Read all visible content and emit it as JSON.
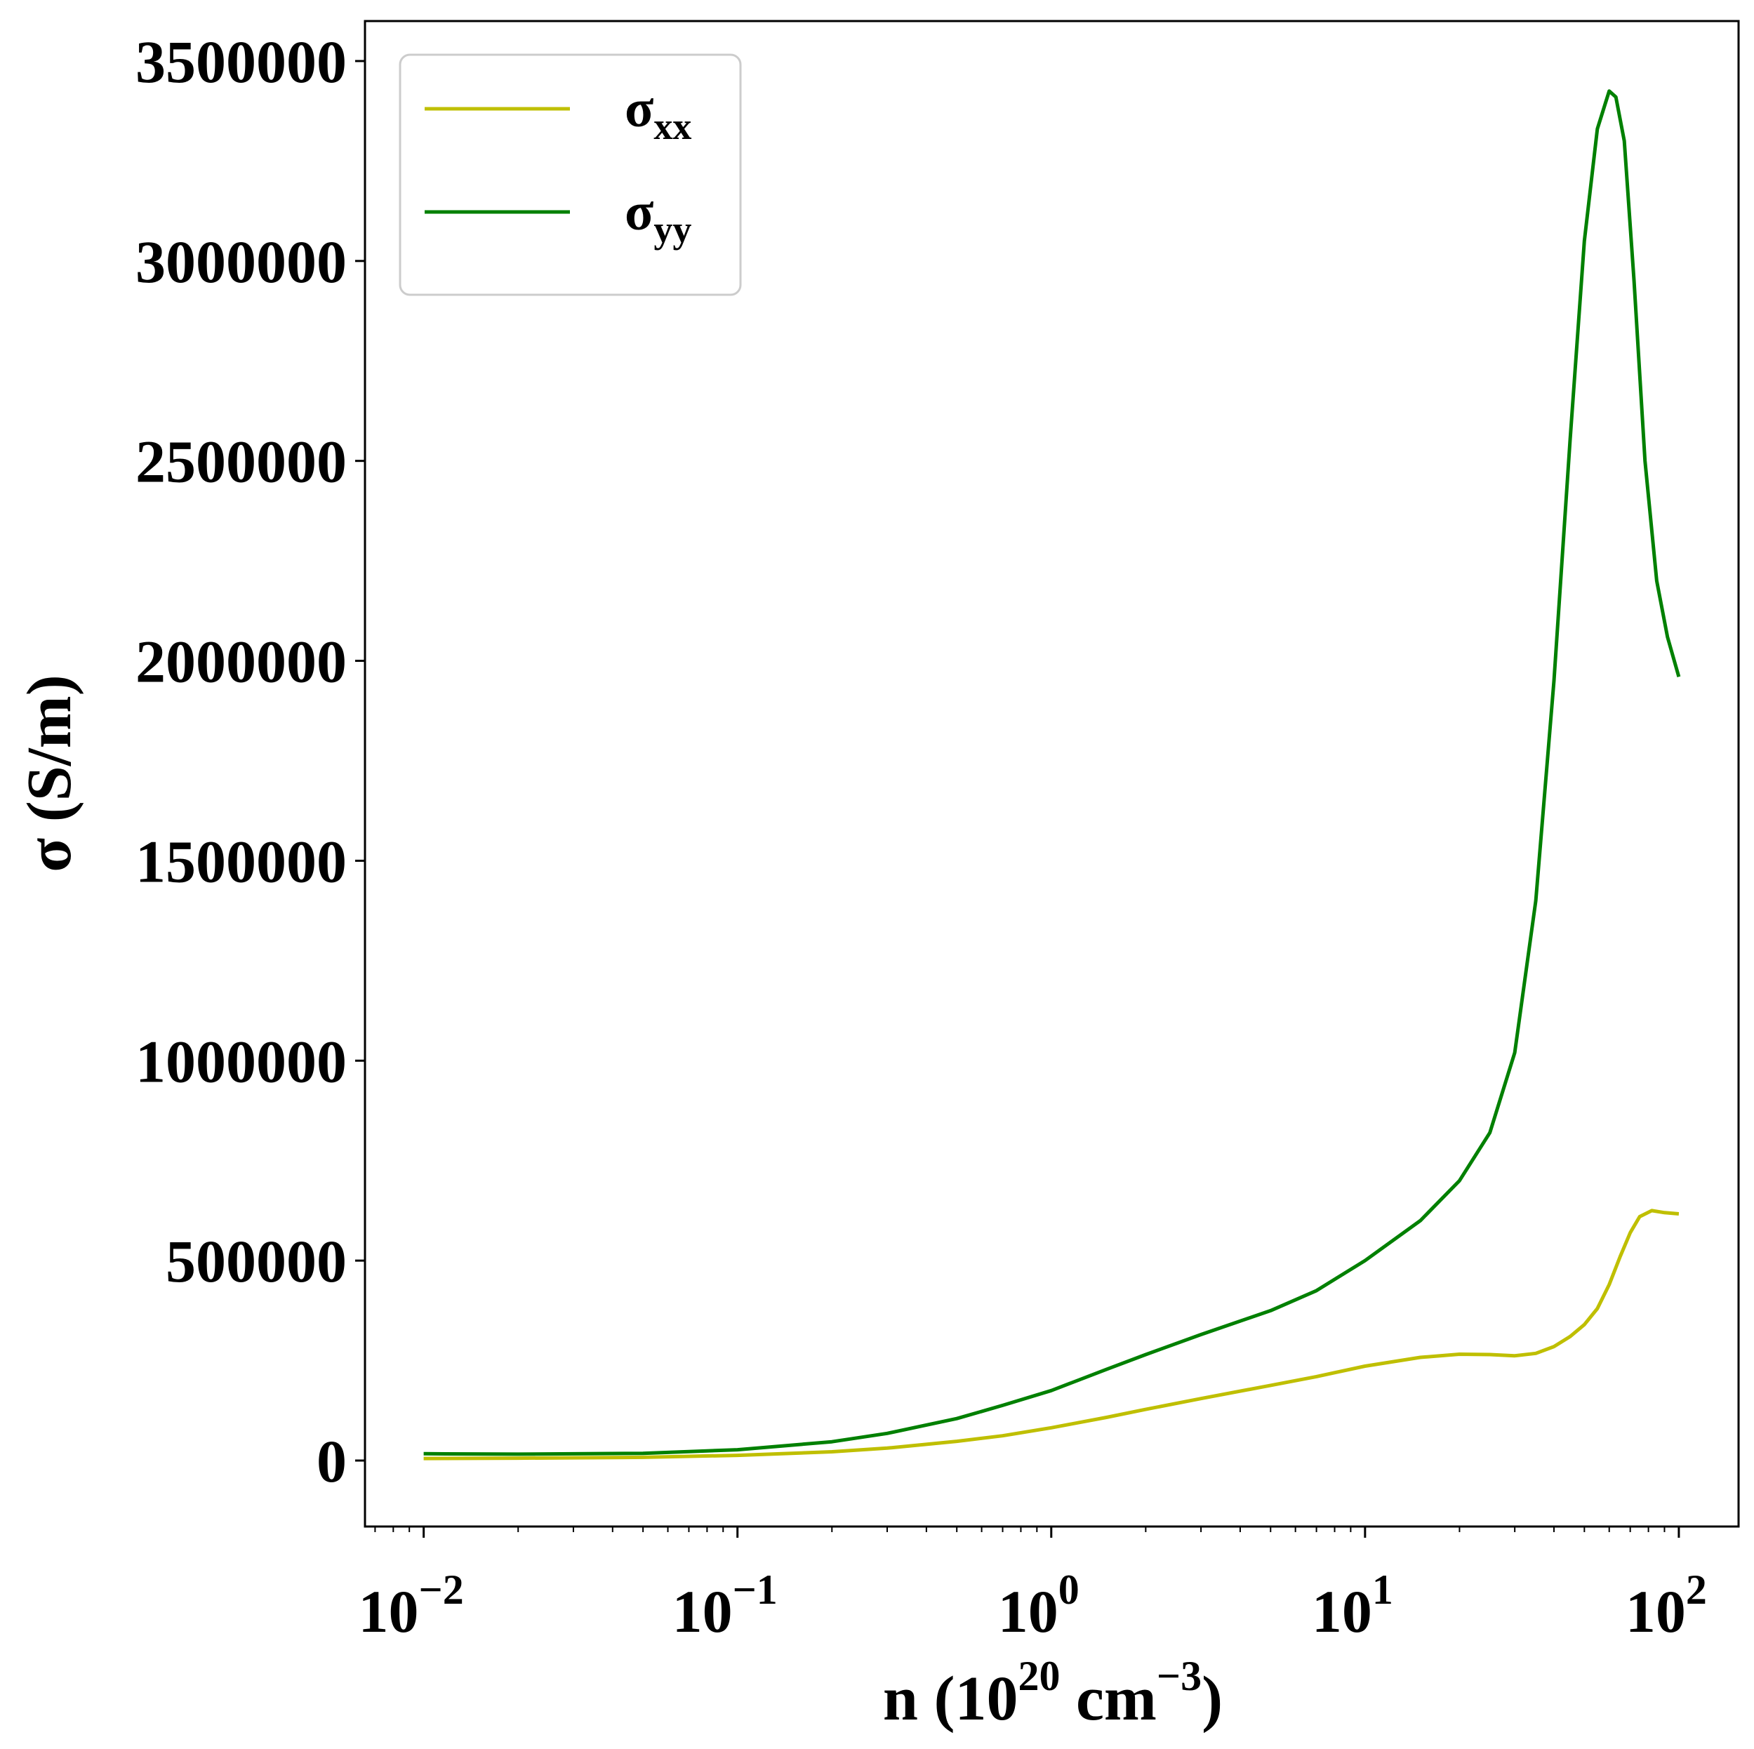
{
  "chart_data": {
    "type": "line",
    "xlabel": {
      "base": "n (10",
      "exp": "20",
      "unit": " cm",
      "unit_exp": "−3",
      "close": ")"
    },
    "ylabel": "σ (S/m)",
    "xscale": "log",
    "xlim": [
      0.0065,
      155
    ],
    "ylim": [
      -165000,
      3600000
    ],
    "x_ticks": [
      {
        "value": 0.01,
        "base": "10",
        "exp": "−2"
      },
      {
        "value": 0.1,
        "base": "10",
        "exp": "−1"
      },
      {
        "value": 1,
        "base": "10",
        "exp": "0"
      },
      {
        "value": 10,
        "base": "10",
        "exp": "1"
      },
      {
        "value": 100,
        "base": "10",
        "exp": "2"
      }
    ],
    "y_ticks": [
      {
        "value": 0,
        "label": "0"
      },
      {
        "value": 500000,
        "label": "500000"
      },
      {
        "value": 1000000,
        "label": "1000000"
      },
      {
        "value": 1500000,
        "label": "1500000"
      },
      {
        "value": 2000000,
        "label": "2000000"
      },
      {
        "value": 2500000,
        "label": "2500000"
      },
      {
        "value": 3000000,
        "label": "3000000"
      },
      {
        "value": 3500000,
        "label": "3500000"
      }
    ],
    "grid": false,
    "legend_position": "top-left",
    "series": [
      {
        "name": "σ",
        "subscript": "xx",
        "color": "#bfbf00",
        "points": [
          [
            0.01,
            5000
          ],
          [
            0.02,
            6000
          ],
          [
            0.05,
            8000
          ],
          [
            0.1,
            13000
          ],
          [
            0.2,
            22000
          ],
          [
            0.3,
            31000
          ],
          [
            0.5,
            48000
          ],
          [
            0.7,
            62000
          ],
          [
            1.0,
            82000
          ],
          [
            1.5,
            108000
          ],
          [
            2.0,
            128000
          ],
          [
            3.0,
            155000
          ],
          [
            5.0,
            188000
          ],
          [
            7.0,
            210000
          ],
          [
            10.0,
            236000
          ],
          [
            15.0,
            258000
          ],
          [
            20.0,
            266000
          ],
          [
            25.0,
            265000
          ],
          [
            30.0,
            262000
          ],
          [
            35.0,
            268000
          ],
          [
            40.0,
            285000
          ],
          [
            45.0,
            310000
          ],
          [
            50.0,
            340000
          ],
          [
            55.0,
            380000
          ],
          [
            60.0,
            440000
          ],
          [
            65.0,
            510000
          ],
          [
            70.0,
            570000
          ],
          [
            75.0,
            610000
          ],
          [
            82.0,
            625000
          ],
          [
            90.0,
            620000
          ],
          [
            100.0,
            617000
          ]
        ]
      },
      {
        "name": "σ",
        "subscript": "yy",
        "color": "#008000",
        "points": [
          [
            0.01,
            17000
          ],
          [
            0.02,
            16000
          ],
          [
            0.05,
            18000
          ],
          [
            0.1,
            27000
          ],
          [
            0.2,
            47000
          ],
          [
            0.3,
            68000
          ],
          [
            0.5,
            105000
          ],
          [
            0.7,
            138000
          ],
          [
            1.0,
            175000
          ],
          [
            1.5,
            228000
          ],
          [
            2.0,
            265000
          ],
          [
            3.0,
            315000
          ],
          [
            5.0,
            375000
          ],
          [
            7.0,
            425000
          ],
          [
            10.0,
            500000
          ],
          [
            15.0,
            600000
          ],
          [
            20.0,
            700000
          ],
          [
            25.0,
            820000
          ],
          [
            30.0,
            1020000
          ],
          [
            35.0,
            1400000
          ],
          [
            40.0,
            1950000
          ],
          [
            45.0,
            2550000
          ],
          [
            50.0,
            3050000
          ],
          [
            55.0,
            3330000
          ],
          [
            60.0,
            3425000
          ],
          [
            63.0,
            3410000
          ],
          [
            67.0,
            3300000
          ],
          [
            72.0,
            2950000
          ],
          [
            78.0,
            2500000
          ],
          [
            85.0,
            2200000
          ],
          [
            92.0,
            2060000
          ],
          [
            100.0,
            1960000
          ]
        ]
      }
    ]
  }
}
